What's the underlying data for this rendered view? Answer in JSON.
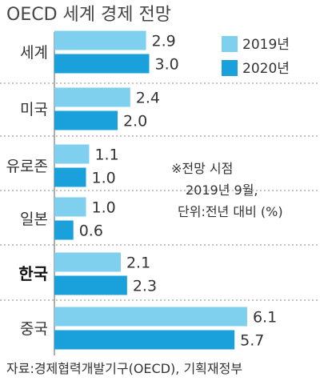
{
  "chart_data": {
    "type": "bar",
    "orientation": "horizontal",
    "title": "OECD 세계 경제 전망",
    "categories": [
      "세계",
      "미국",
      "유로존",
      "일본",
      "한국",
      "중국"
    ],
    "highlight_category": "한국",
    "series": [
      {
        "name": "2019년",
        "color": "#7fd0ef",
        "values": [
          2.9,
          2.4,
          1.1,
          1.0,
          2.1,
          6.1
        ],
        "labels": [
          "2.9",
          "2.4",
          "1.1",
          "1.0",
          "2.1",
          "6.1"
        ]
      },
      {
        "name": "2020년",
        "color": "#1aa1dc",
        "values": [
          3.0,
          2.0,
          1.0,
          0.6,
          2.3,
          5.7
        ],
        "labels": [
          "3.0",
          "2.0",
          "1.0",
          "0.6",
          "2.3",
          "5.7"
        ]
      }
    ],
    "legend_position": "top-right",
    "note": [
      "※전망 시점",
      "2019년 9월,",
      "단위:전년 대비 (%)"
    ],
    "source": "자료:경제협력개발기구(OECD), 기획재정부"
  }
}
